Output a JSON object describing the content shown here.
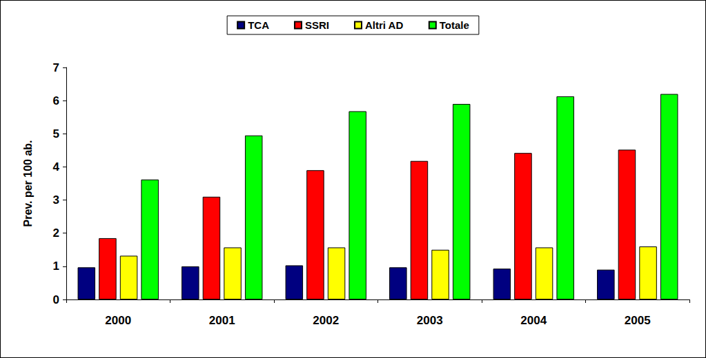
{
  "chart_data": {
    "type": "bar",
    "y_label": "Prev. per 100 ab.",
    "categories": [
      "2000",
      "2001",
      "2002",
      "2003",
      "2004",
      "2005"
    ],
    "series": [
      {
        "name": "TCA",
        "color": "#000080",
        "values": [
          0.97,
          1.0,
          1.03,
          0.97,
          0.93,
          0.9
        ]
      },
      {
        "name": "SSRI",
        "color": "#ff0000",
        "values": [
          1.85,
          3.1,
          3.9,
          4.18,
          4.42,
          4.52
        ]
      },
      {
        "name": "Altri AD",
        "color": "#ffff00",
        "values": [
          1.32,
          1.57,
          1.57,
          1.5,
          1.57,
          1.6
        ]
      },
      {
        "name": "Totale",
        "color": "#00ff00",
        "values": [
          3.62,
          4.95,
          5.68,
          5.9,
          6.13,
          6.2
        ]
      }
    ],
    "ylim": [
      0,
      7
    ],
    "yticks": [
      0,
      1,
      2,
      3,
      4,
      5,
      6,
      7
    ],
    "grid": false,
    "legend": "top"
  }
}
